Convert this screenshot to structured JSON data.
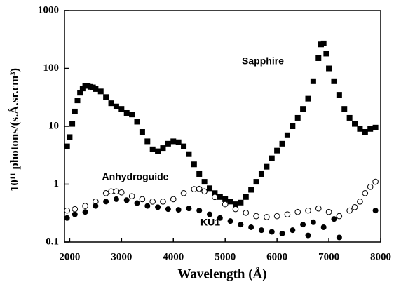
{
  "chart_data": {
    "type": "scatter",
    "xlabel": "Wavelength (Å)",
    "ylabel": "10¹¹ photons/(s.Å.sr.cm³)",
    "xlim": [
      1900,
      8000
    ],
    "xticks": [
      2000,
      3000,
      4000,
      5000,
      6000,
      7000,
      8000
    ],
    "ylim": [
      0.1,
      1000
    ],
    "yticks": [
      0.1,
      1,
      10,
      100,
      1000
    ],
    "ylog": true,
    "annotations": [
      "Sapphire",
      "Anhydroguide",
      "KU1"
    ],
    "series": [
      {
        "name": "Sapphire",
        "color": "#000000",
        "marker": "square",
        "x": [
          1950,
          2000,
          2050,
          2100,
          2150,
          2200,
          2250,
          2300,
          2350,
          2400,
          2450,
          2500,
          2600,
          2700,
          2800,
          2900,
          3000,
          3100,
          3200,
          3300,
          3400,
          3500,
          3600,
          3700,
          3800,
          3900,
          4000,
          4100,
          4200,
          4300,
          4400,
          4500,
          4600,
          4700,
          4800,
          4900,
          5000,
          5100,
          5200,
          5300,
          5400,
          5500,
          5600,
          5700,
          5800,
          5900,
          6000,
          6100,
          6200,
          6300,
          6400,
          6500,
          6600,
          6700,
          6800,
          6850,
          6900,
          6950,
          7000,
          7100,
          7200,
          7300,
          7400,
          7500,
          7600,
          7700,
          7800,
          7900
        ],
        "values": [
          4.5,
          6.5,
          11,
          18,
          28,
          38,
          45,
          50,
          50,
          48,
          47,
          44,
          40,
          32,
          25,
          22,
          20,
          17,
          16,
          12,
          8,
          5.5,
          4,
          3.7,
          4.2,
          5,
          5.5,
          5.3,
          4.5,
          3.3,
          2.2,
          1.5,
          1.1,
          0.85,
          0.7,
          0.6,
          0.55,
          0.5,
          0.45,
          0.48,
          0.6,
          0.8,
          1.1,
          1.5,
          2,
          2.8,
          3.8,
          5,
          7,
          10,
          14,
          20,
          30,
          60,
          150,
          260,
          270,
          180,
          100,
          60,
          35,
          20,
          14,
          11,
          9,
          8,
          9,
          9.5
        ]
      },
      {
        "name": "Anhydroguide",
        "color": "#000000",
        "marker": "circle-open",
        "x": [
          1950,
          2100,
          2300,
          2500,
          2700,
          2800,
          2900,
          3000,
          3200,
          3400,
          3600,
          3800,
          4000,
          4200,
          4400,
          4500,
          4600,
          4800,
          5000,
          5200,
          5400,
          5600,
          5800,
          6000,
          6200,
          6400,
          6600,
          6800,
          7000,
          7200,
          7400,
          7500,
          7600,
          7700,
          7800,
          7900
        ],
        "values": [
          0.35,
          0.37,
          0.42,
          0.5,
          0.7,
          0.75,
          0.75,
          0.72,
          0.62,
          0.55,
          0.5,
          0.5,
          0.55,
          0.7,
          0.82,
          0.83,
          0.75,
          0.6,
          0.45,
          0.37,
          0.32,
          0.28,
          0.27,
          0.28,
          0.3,
          0.33,
          0.35,
          0.38,
          0.33,
          0.28,
          0.35,
          0.4,
          0.5,
          0.7,
          0.9,
          1.1
        ]
      },
      {
        "name": "KU1",
        "color": "#000000",
        "marker": "circle",
        "x": [
          1950,
          2100,
          2300,
          2500,
          2700,
          2900,
          3100,
          3300,
          3500,
          3700,
          3900,
          4100,
          4300,
          4500,
          4700,
          4900,
          5100,
          5300,
          5500,
          5700,
          5900,
          6100,
          6300,
          6500,
          6600,
          6700,
          6900,
          7100,
          7200,
          7900
        ],
        "values": [
          0.26,
          0.3,
          0.33,
          0.42,
          0.5,
          0.55,
          0.53,
          0.47,
          0.42,
          0.4,
          0.37,
          0.36,
          0.38,
          0.35,
          0.3,
          0.26,
          0.23,
          0.2,
          0.18,
          0.16,
          0.15,
          0.14,
          0.16,
          0.2,
          0.13,
          0.22,
          0.18,
          0.25,
          0.12,
          0.35
        ]
      }
    ]
  }
}
